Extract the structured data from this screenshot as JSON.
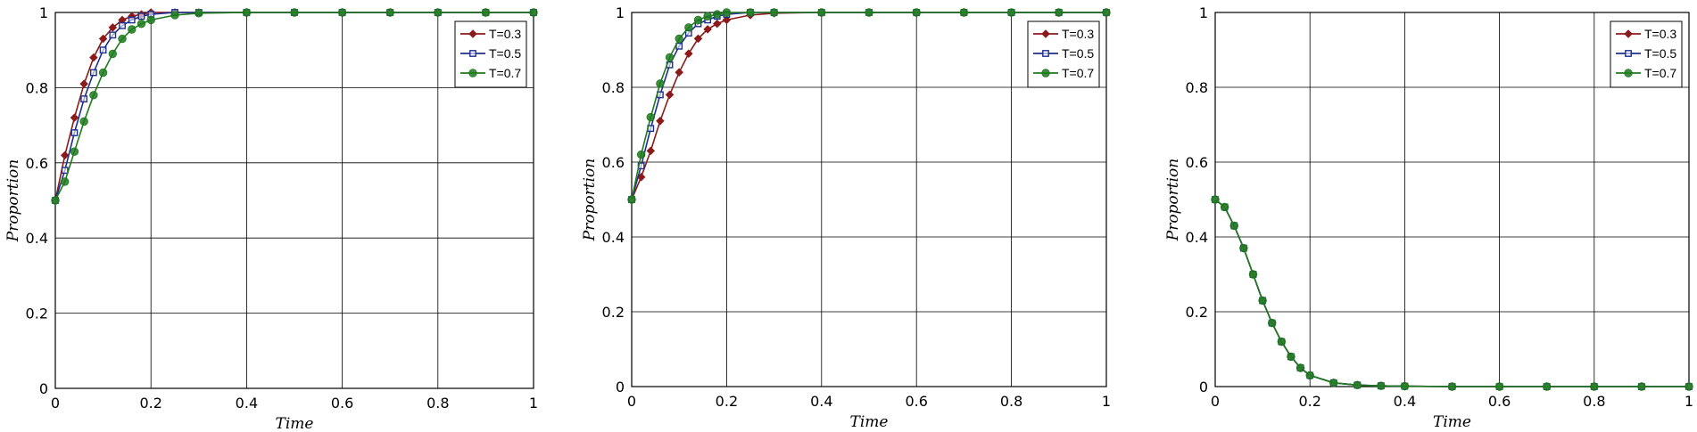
{
  "colors": {
    "series": [
      "#8B1A1A",
      "#1F2F8F",
      "#1E7A1E"
    ],
    "grid": "#000000",
    "axis": "#000000"
  },
  "chart_data": [
    {
      "type": "line",
      "xlabel": "Time",
      "ylabel": "Proportion",
      "xlim": [
        0,
        1
      ],
      "ylim": [
        0,
        1
      ],
      "xticks": [
        "0",
        "0.2",
        "0.4",
        "0.6",
        "0.8",
        "1"
      ],
      "yticks": [
        "0",
        "0.2",
        "0.4",
        "0.6",
        "0.8",
        "1"
      ],
      "grid": true,
      "legend_position": "top-right",
      "x": [
        0,
        0.02,
        0.04,
        0.06,
        0.08,
        0.1,
        0.12,
        0.14,
        0.16,
        0.18,
        0.2,
        0.25,
        0.3,
        0.4,
        0.5,
        0.6,
        0.7,
        0.8,
        0.9,
        1.0
      ],
      "series": [
        {
          "name": "T=0.3",
          "marker": "diamond",
          "values": [
            0.5,
            0.62,
            0.72,
            0.81,
            0.88,
            0.93,
            0.96,
            0.98,
            0.99,
            0.995,
            1.0,
            1.0,
            1.0,
            1.0,
            1.0,
            1.0,
            1.0,
            1.0,
            1.0,
            1.0
          ]
        },
        {
          "name": "T=0.5",
          "marker": "square",
          "values": [
            0.5,
            0.58,
            0.68,
            0.77,
            0.84,
            0.9,
            0.94,
            0.965,
            0.98,
            0.99,
            0.995,
            1.0,
            1.0,
            1.0,
            1.0,
            1.0,
            1.0,
            1.0,
            1.0,
            1.0
          ]
        },
        {
          "name": "T=0.7",
          "marker": "circle",
          "values": [
            0.5,
            0.55,
            0.63,
            0.71,
            0.78,
            0.84,
            0.89,
            0.93,
            0.955,
            0.97,
            0.98,
            0.993,
            0.998,
            1.0,
            1.0,
            1.0,
            1.0,
            1.0,
            1.0,
            1.0
          ]
        }
      ]
    },
    {
      "type": "line",
      "xlabel": "Time",
      "ylabel": "Proportion",
      "xlim": [
        0,
        1
      ],
      "ylim": [
        0,
        1
      ],
      "xticks": [
        "0",
        "0.2",
        "0.4",
        "0.6",
        "0.8",
        "1"
      ],
      "yticks": [
        "0",
        "0.2",
        "0.4",
        "0.6",
        "0.8",
        "1"
      ],
      "grid": true,
      "legend_position": "top-right",
      "x": [
        0,
        0.02,
        0.04,
        0.06,
        0.08,
        0.1,
        0.12,
        0.14,
        0.16,
        0.18,
        0.2,
        0.25,
        0.3,
        0.4,
        0.5,
        0.6,
        0.7,
        0.8,
        0.9,
        1.0
      ],
      "series": [
        {
          "name": "T=0.3",
          "marker": "diamond",
          "values": [
            0.5,
            0.56,
            0.63,
            0.71,
            0.78,
            0.84,
            0.89,
            0.93,
            0.955,
            0.97,
            0.98,
            0.993,
            0.998,
            1.0,
            1.0,
            1.0,
            1.0,
            1.0,
            1.0,
            1.0
          ]
        },
        {
          "name": "T=0.5",
          "marker": "square",
          "values": [
            0.5,
            0.59,
            0.69,
            0.78,
            0.86,
            0.91,
            0.945,
            0.97,
            0.98,
            0.99,
            0.995,
            1.0,
            1.0,
            1.0,
            1.0,
            1.0,
            1.0,
            1.0,
            1.0,
            1.0
          ]
        },
        {
          "name": "T=0.7",
          "marker": "circle",
          "values": [
            0.5,
            0.62,
            0.72,
            0.81,
            0.88,
            0.93,
            0.96,
            0.98,
            0.99,
            0.995,
            1.0,
            1.0,
            1.0,
            1.0,
            1.0,
            1.0,
            1.0,
            1.0,
            1.0,
            1.0
          ]
        }
      ]
    },
    {
      "type": "line",
      "xlabel": "Time",
      "ylabel": "Proportion",
      "xlim": [
        0,
        1
      ],
      "ylim": [
        0,
        1
      ],
      "xticks": [
        "0",
        "0.2",
        "0.4",
        "0.6",
        "0.8",
        "1"
      ],
      "yticks": [
        "0",
        "0.2",
        "0.4",
        "0.6",
        "0.8",
        "1"
      ],
      "grid": true,
      "legend_position": "top-right",
      "x": [
        0,
        0.02,
        0.04,
        0.06,
        0.08,
        0.1,
        0.12,
        0.14,
        0.16,
        0.18,
        0.2,
        0.25,
        0.3,
        0.35,
        0.4,
        0.5,
        0.6,
        0.7,
        0.8,
        0.9,
        1.0
      ],
      "series": [
        {
          "name": "T=0.3",
          "marker": "diamond",
          "values": [
            0.5,
            0.48,
            0.43,
            0.37,
            0.3,
            0.23,
            0.17,
            0.12,
            0.08,
            0.05,
            0.03,
            0.01,
            0.004,
            0.002,
            0.001,
            0.0,
            0.0,
            0.0,
            0.0,
            0.0,
            0.0
          ]
        },
        {
          "name": "T=0.5",
          "marker": "square",
          "values": [
            0.5,
            0.48,
            0.43,
            0.37,
            0.3,
            0.23,
            0.17,
            0.12,
            0.08,
            0.05,
            0.03,
            0.01,
            0.004,
            0.002,
            0.001,
            0.0,
            0.0,
            0.0,
            0.0,
            0.0,
            0.0
          ]
        },
        {
          "name": "T=0.7",
          "marker": "circle",
          "values": [
            0.5,
            0.48,
            0.43,
            0.37,
            0.3,
            0.23,
            0.17,
            0.12,
            0.08,
            0.05,
            0.03,
            0.01,
            0.004,
            0.002,
            0.001,
            0.0,
            0.0,
            0.0,
            0.0,
            0.0,
            0.0
          ]
        }
      ]
    }
  ]
}
